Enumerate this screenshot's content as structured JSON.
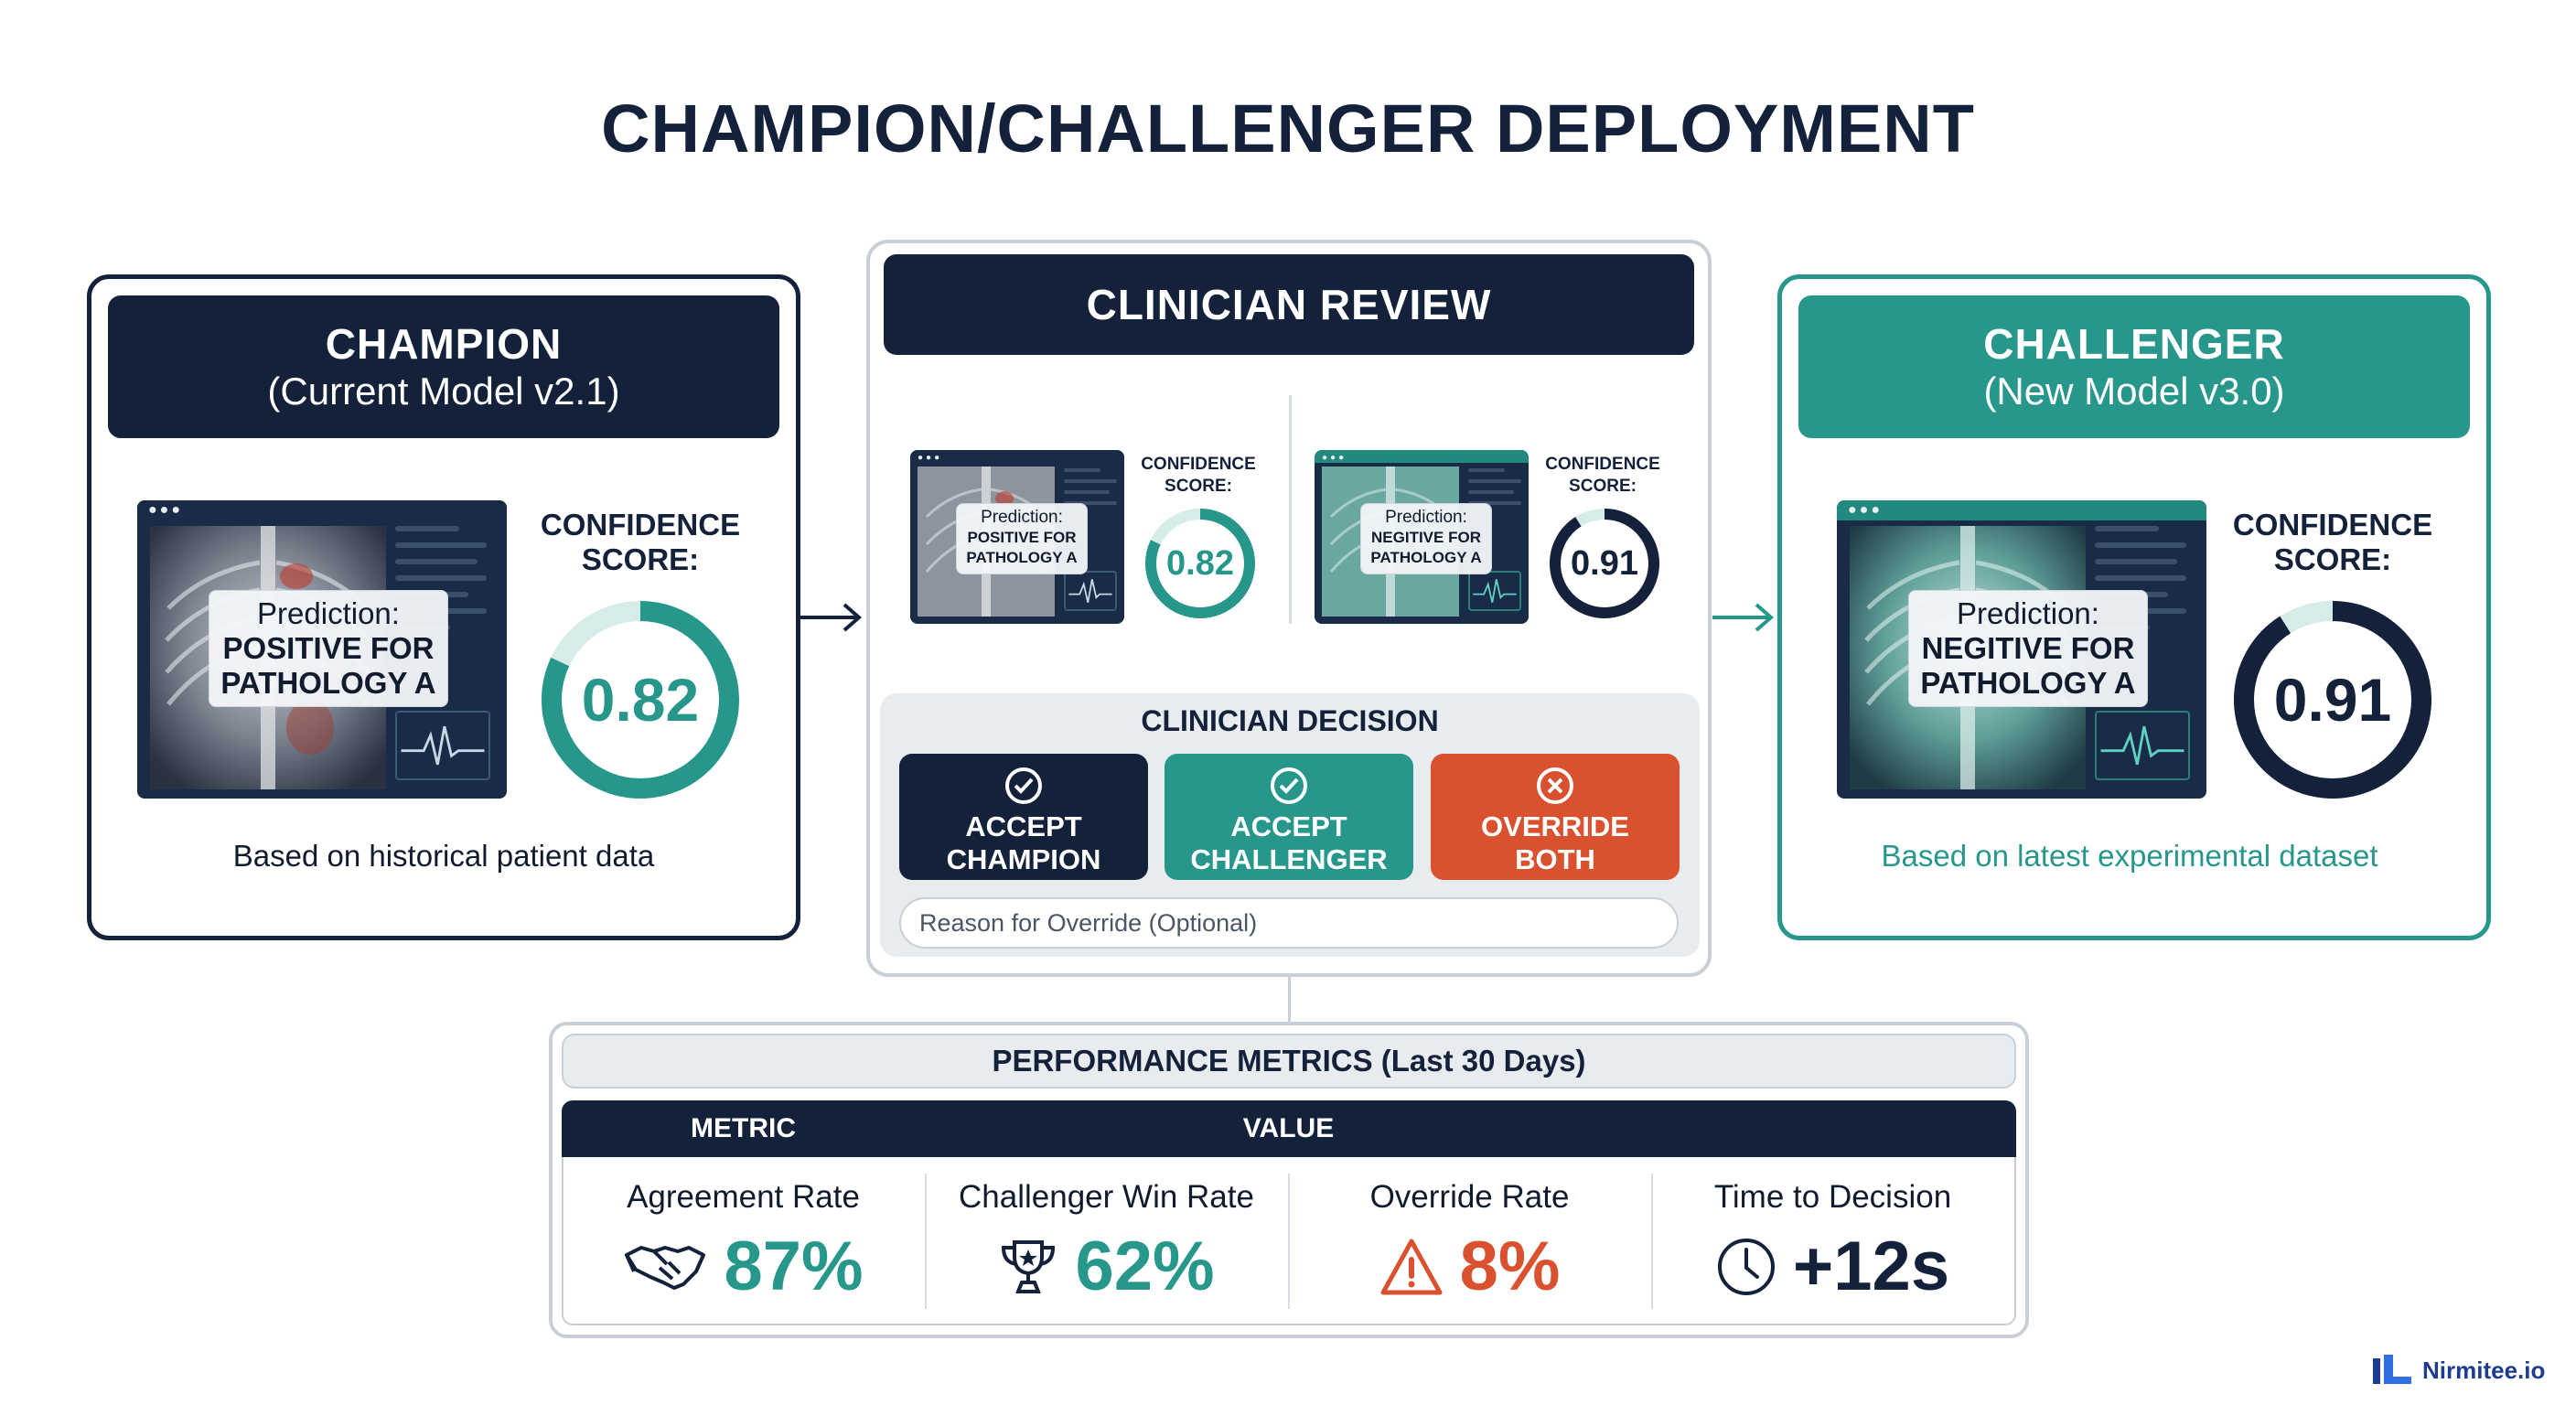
{
  "title": "CHAMPION/CHALLENGER DEPLOYMENT",
  "colors": {
    "navy": "#14213a",
    "teal": "#27978b",
    "orange": "#d9512f",
    "light_gray": "#e9ecef",
    "brand_blue": "#1d3c8f"
  },
  "champion": {
    "title": "CHAMPION",
    "subtitle": "(Current Model v2.1)",
    "prediction_label": "Prediction:",
    "prediction_line1": "POSITIVE FOR",
    "prediction_line2": "PATHOLOGY A",
    "confidence_label_1": "CONFIDENCE",
    "confidence_label_2": "SCORE:",
    "confidence_score": "0.82",
    "confidence_fraction": 0.82,
    "footer": "Based on historical patient data"
  },
  "challenger": {
    "title": "CHALLENGER",
    "subtitle": "(New Model v3.0)",
    "prediction_label": "Prediction:",
    "prediction_line1": "NEGITIVE FOR",
    "prediction_line2": "PATHOLOGY A",
    "confidence_label_1": "CONFIDENCE",
    "confidence_label_2": "SCORE:",
    "confidence_score": "0.91",
    "confidence_fraction": 0.91,
    "footer": "Based on latest experimental dataset"
  },
  "review": {
    "title": "CLINICIAN REVIEW",
    "champion_prediction_label": "Prediction:",
    "champion_prediction_line1": "POSITIVE FOR",
    "champion_prediction_line2": "PATHOLOGY A",
    "challenger_prediction_label": "Prediction:",
    "challenger_prediction_line1": "NEGITIVE FOR",
    "challenger_prediction_line2": "PATHOLOGY A",
    "confidence_label_1": "CONFIDENCE",
    "confidence_label_2": "SCORE:",
    "champion_score": "0.82",
    "challenger_score": "0.91",
    "decision_title": "CLINICIAN DECISION",
    "buttons": {
      "accept_champion_1": "ACCEPT",
      "accept_champion_2": "CHAMPION",
      "accept_challenger_1": "ACCEPT",
      "accept_challenger_2": "CHALLENGER",
      "override_1": "OVERRIDE",
      "override_2": "BOTH"
    },
    "override_placeholder": "Reason for Override (Optional)"
  },
  "metrics": {
    "title": "PERFORMANCE METRICS (Last 30 Days)",
    "col_metric": "METRIC",
    "col_value": "VALUE",
    "items": [
      {
        "name": "Agreement Rate",
        "value": "87%",
        "icon": "handshake-icon"
      },
      {
        "name": "Challenger Win Rate",
        "value": "62%",
        "icon": "trophy-icon"
      },
      {
        "name": "Override Rate",
        "value": "8%",
        "icon": "warning-icon"
      },
      {
        "name": "Time to Decision",
        "value": "+12s",
        "icon": "clock-icon"
      }
    ]
  },
  "brand": {
    "name": "Nirmitee.io"
  }
}
